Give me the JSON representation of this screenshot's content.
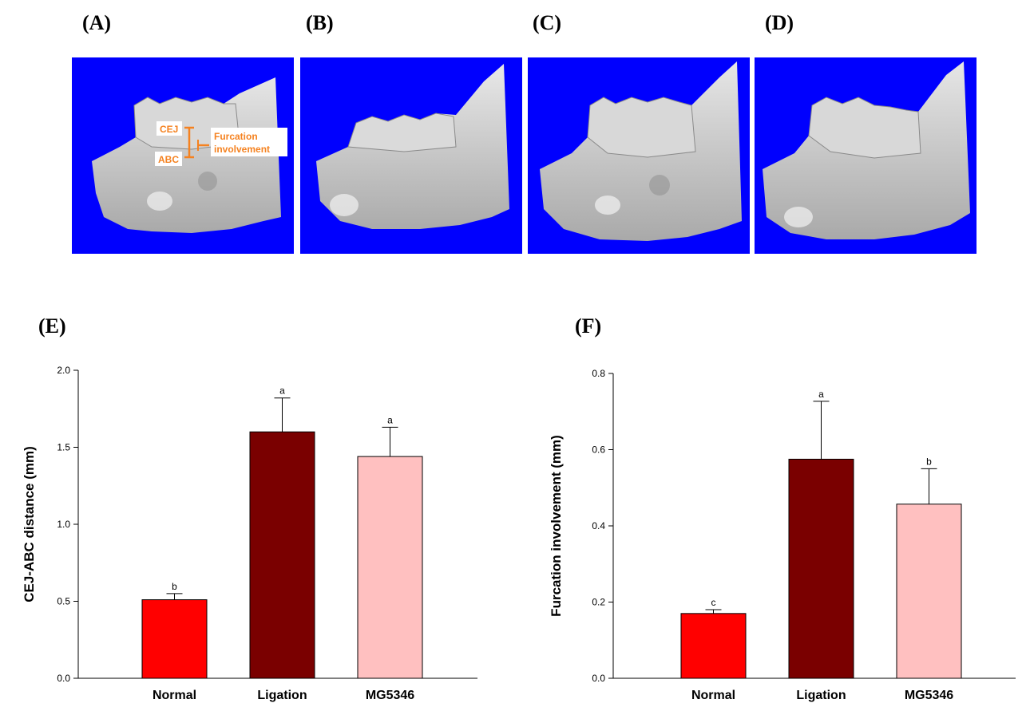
{
  "panels": {
    "A": "(A)",
    "B": "(B)",
    "C": "(C)",
    "D": "(D)",
    "E": "(E)",
    "F": "(F)"
  },
  "annotation": {
    "cej": "CEJ",
    "abc": "ABC",
    "furcation_line1": "Furcation",
    "furcation_line2": "involvement"
  },
  "colors": {
    "image_background": "#0000fe",
    "bone": "#cfcfcf",
    "annotation": "#f58220"
  },
  "chart_data": [
    {
      "type": "bar",
      "categories": [
        "Normal",
        "Ligation",
        "MG5346"
      ],
      "values": [
        0.51,
        1.6,
        1.44
      ],
      "errors": [
        0.04,
        0.22,
        0.19
      ],
      "significance": [
        "b",
        "a",
        "a"
      ],
      "colors": [
        "#ff0000",
        "#7a0000",
        "#ffc0c0"
      ],
      "ylabel": "CEJ-ABC distance (mm)",
      "ylim": [
        0,
        2.0
      ],
      "yticks": [
        "0.0",
        "0.5",
        "1.0",
        "1.5",
        "2.0"
      ],
      "ytick_values": [
        0,
        0.5,
        1.0,
        1.5,
        2.0
      ]
    },
    {
      "type": "bar",
      "categories": [
        "Normal",
        "Ligation",
        "MG5346"
      ],
      "values": [
        0.17,
        0.575,
        0.457
      ],
      "errors": [
        0.01,
        0.152,
        0.093
      ],
      "significance": [
        "c",
        "a",
        "b"
      ],
      "colors": [
        "#ff0000",
        "#7a0000",
        "#ffc0c0"
      ],
      "ylabel": "Furcation involvement (mm)",
      "ylim": [
        0,
        0.8
      ],
      "yticks": [
        "0.0",
        "0.2",
        "0.4",
        "0.6",
        "0.8"
      ],
      "ytick_values": [
        0,
        0.2,
        0.4,
        0.6,
        0.8
      ]
    }
  ]
}
